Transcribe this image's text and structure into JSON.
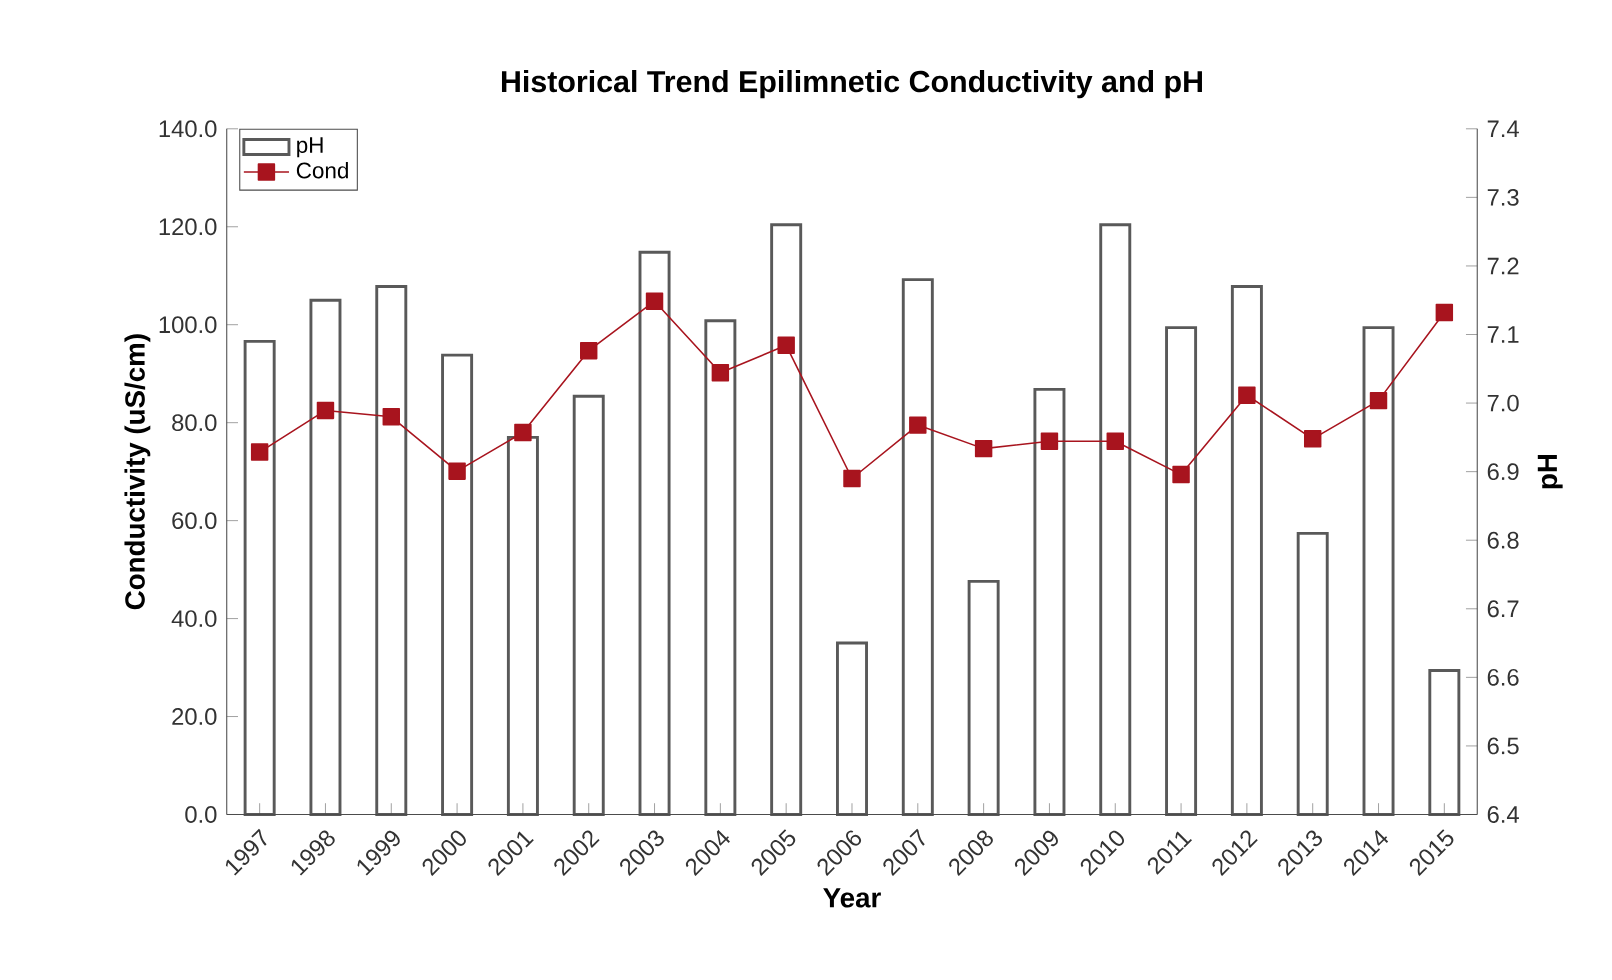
{
  "chart_data": {
    "type": "bar",
    "title": "Historical Trend Epilimnetic  Conductivity and pH",
    "xlabel": "Year",
    "ylabel": "Conductivity  (uS/cm)",
    "y2label": "pH",
    "categories": [
      "1997",
      "1998",
      "1999",
      "2000",
      "2001",
      "2002",
      "2003",
      "2004",
      "2005",
      "2006",
      "2007",
      "2008",
      "2009",
      "2010",
      "2011",
      "2012",
      "2013",
      "2014",
      "2015"
    ],
    "series": [
      {
        "name": "pH",
        "axis": "y2",
        "color": "#ffffff",
        "values": [
          7.09,
          7.15,
          7.17,
          7.07,
          6.95,
          7.01,
          7.22,
          7.12,
          7.26,
          6.65,
          7.18,
          6.74,
          7.02,
          7.26,
          7.11,
          7.17,
          6.81,
          7.11,
          6.61
        ]
      },
      {
        "name": "Cond",
        "type": "line",
        "color": "#a8141e",
        "values": [
          74.0,
          82.5,
          81.2,
          70.1,
          78.0,
          94.7,
          104.8,
          90.2,
          95.8,
          68.6,
          79.5,
          74.7,
          76.2,
          76.2,
          69.4,
          85.6,
          76.7,
          84.5,
          102.5
        ]
      }
    ],
    "ylim": [
      0,
      140
    ],
    "yticks": [
      {
        "value": 0,
        "label": "0.0"
      },
      {
        "value": 20,
        "label": "20.0"
      },
      {
        "value": 40,
        "label": "40.0"
      },
      {
        "value": 60,
        "label": "60.0"
      },
      {
        "value": 80,
        "label": "80.0"
      },
      {
        "value": 100,
        "label": "100.0"
      },
      {
        "value": 120,
        "label": "120.0"
      },
      {
        "value": 140,
        "label": "140.0"
      }
    ],
    "y2lim": [
      6.4,
      7.4
    ],
    "y2ticks": [
      6.4,
      6.5,
      6.6,
      6.7,
      6.8,
      6.9,
      {
        "value": 7,
        "label": "7.0"
      },
      7.1,
      7.2,
      7.3,
      7.4
    ],
    "legend": "top left",
    "marker": "square",
    "grid": false
  }
}
